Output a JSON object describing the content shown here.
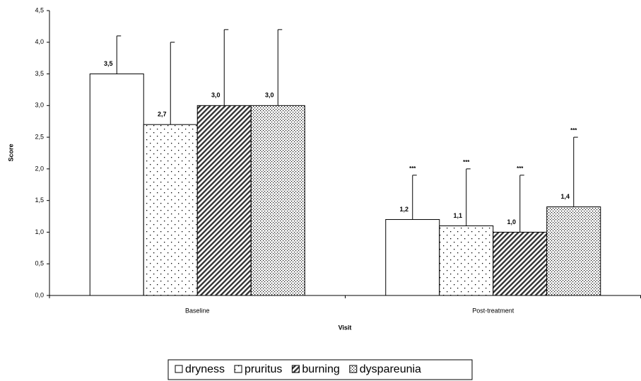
{
  "chart_data": {
    "type": "bar",
    "y_label": "Score",
    "x_label": "Visit",
    "categories": [
      "Baseline",
      "Post-treatment"
    ],
    "series": [
      {
        "name": "dryness",
        "color": "#ffffff",
        "pattern": "none",
        "values": [
          3.5,
          1.2
        ],
        "value_labels": [
          "3,5",
          "1,2"
        ],
        "errors": [
          0.6,
          0.7
        ],
        "annotations": [
          null,
          "***"
        ]
      },
      {
        "name": "pruritus",
        "color": "#ffffff",
        "pattern": "sparse-dots",
        "values": [
          2.7,
          1.1
        ],
        "value_labels": [
          "2,7",
          "1,1"
        ],
        "errors": [
          1.3,
          0.9
        ],
        "annotations": [
          null,
          "***"
        ]
      },
      {
        "name": "burning",
        "color": "#ffffff",
        "pattern": "hatch",
        "values": [
          3.0,
          1.0
        ],
        "value_labels": [
          "3,0",
          "1,0"
        ],
        "errors": [
          1.2,
          0.9
        ],
        "annotations": [
          null,
          "***"
        ]
      },
      {
        "name": "dyspareunia",
        "color": "#ffffff",
        "pattern": "dense-dots",
        "values": [
          3.0,
          1.4
        ],
        "value_labels": [
          "3,0",
          "1,4"
        ],
        "errors": [
          1.2,
          1.1
        ],
        "annotations": [
          null,
          "***"
        ]
      }
    ],
    "ylim": [
      0,
      4.5
    ],
    "yticks": [
      {
        "value": 0,
        "label": "0,0"
      },
      {
        "value": 0.5,
        "label": "0,5"
      },
      {
        "value": 1,
        "label": "1,0"
      },
      {
        "value": 1.5,
        "label": "1,5"
      },
      {
        "value": 2,
        "label": "2,0"
      },
      {
        "value": 2.5,
        "label": "2,5"
      },
      {
        "value": 3,
        "label": "3,0"
      },
      {
        "value": 3.5,
        "label": "3,5"
      },
      {
        "value": 4,
        "label": "4,0"
      },
      {
        "value": 4.5,
        "label": "4,5"
      }
    ],
    "legend": "bottom"
  }
}
